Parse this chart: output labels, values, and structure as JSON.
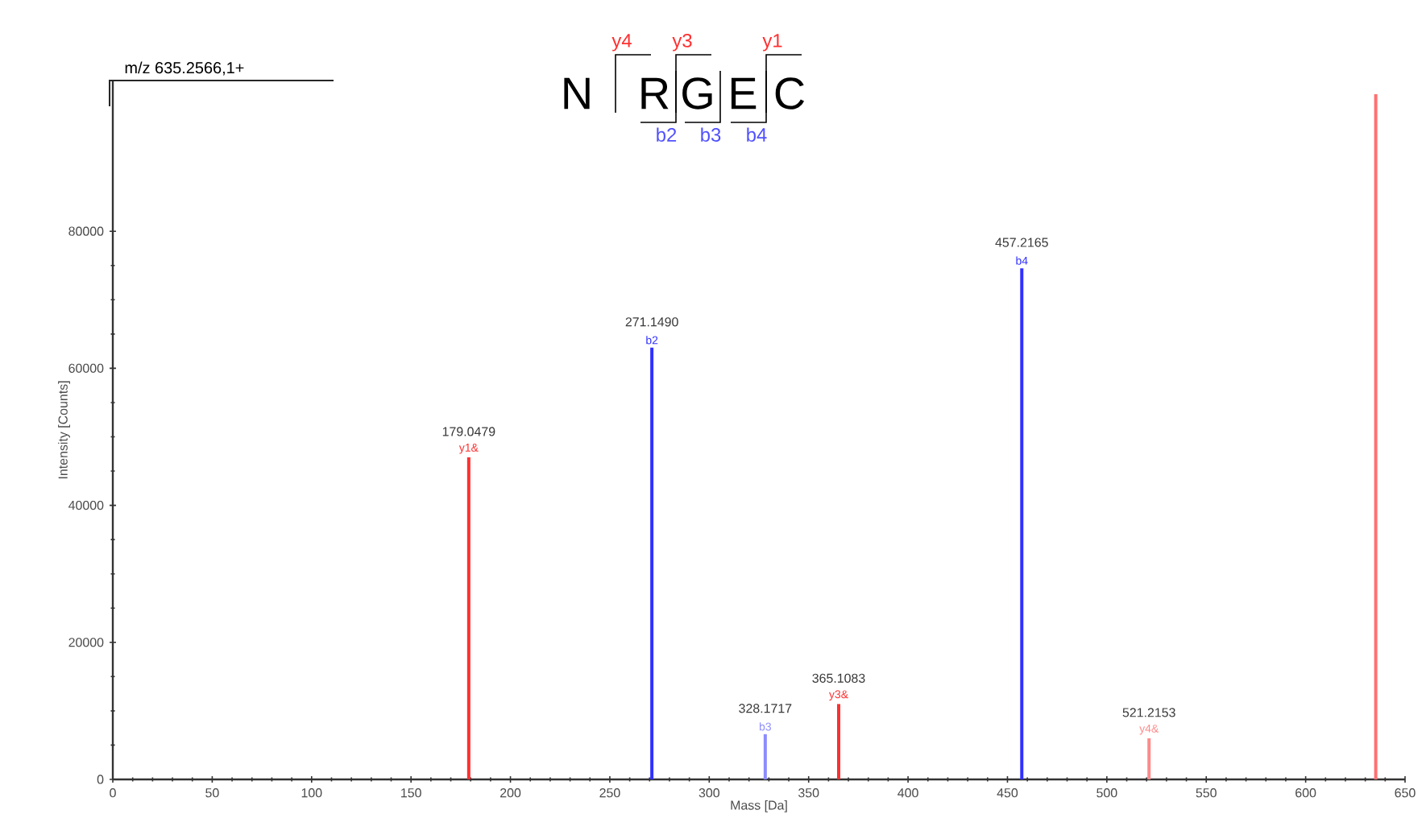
{
  "chart_data": {
    "type": "bar",
    "annotations": [
      "m/z 635.2566,1+",
      "N",
      "R",
      "G",
      "E",
      "C",
      "y4",
      "y3",
      "y1",
      "b2",
      "b3",
      "b4",
      {
        "text": "179.0479",
        "x": 179.0479,
        "y": 47000
      },
      {
        "text": "y1&",
        "x": 179.0479,
        "y": 47000
      },
      {
        "text": "271.1490",
        "x": 271.149,
        "y": 63000
      },
      {
        "text": "b2",
        "x": 271.149,
        "y": 63000
      },
      {
        "text": "328.1717",
        "x": 328.1717,
        "y": 6600
      },
      {
        "text": "b3",
        "x": 328.1717,
        "y": 6600
      },
      {
        "text": "365.1083",
        "x": 365.1083,
        "y": 11000
      },
      {
        "text": "y3&",
        "x": 365.1083,
        "y": 11000
      },
      {
        "text": "457.2165",
        "x": 457.2165,
        "y": 74600
      },
      {
        "text": "b4",
        "x": 457.2165,
        "y": 74600
      },
      {
        "text": "521.2153",
        "x": 521.2153,
        "y": 6000
      },
      {
        "text": "y4&",
        "x": 521.2153,
        "y": 6000
      }
    ],
    "xlabel": "Mass [Da]",
    "ylabel": "Intensity [Counts]",
    "series": [
      {
        "x": [
          179.0479,
          365.1083,
          521.2153,
          635.2566
        ],
        "values": [
          47000,
          11000,
          6000,
          100000
        ],
        "colors": [
          "#ff3030",
          "#ff3030",
          "#ff8a8a",
          "#ff7070"
        ]
      },
      {
        "x": [
          271.149,
          328.1717,
          457.2165
        ],
        "values": [
          63000,
          6600,
          74600
        ],
        "colors": [
          "#3030ff",
          "#8c8cff",
          "#3030ff"
        ]
      }
    ],
    "xlim": [
      0,
      650
    ],
    "xticks": [
      0,
      50,
      100,
      150,
      200,
      250,
      300,
      350,
      400,
      450,
      500,
      550,
      600,
      650
    ],
    "ylim": [
      0,
      102000
    ],
    "yticks": [
      0,
      20000,
      40000,
      60000,
      80000
    ]
  }
}
